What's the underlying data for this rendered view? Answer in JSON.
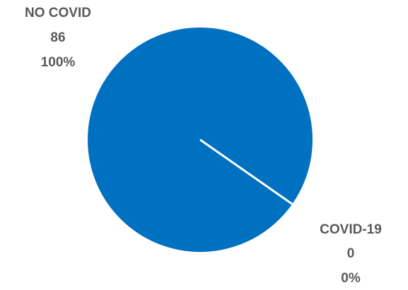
{
  "chart_data": {
    "type": "pie",
    "categories": [
      "NO COVID",
      "COVID-19"
    ],
    "values": [
      86,
      0
    ],
    "percentages": [
      "100%",
      "0%"
    ],
    "colors": [
      "#0070C0",
      "#ED7D31"
    ],
    "separator_color": "#ffffff",
    "legend": "none",
    "labels": [
      {
        "category": "NO COVID",
        "value": "86",
        "percent": "100%"
      },
      {
        "category": "COVID-19",
        "value": "0",
        "percent": "0%"
      }
    ]
  }
}
